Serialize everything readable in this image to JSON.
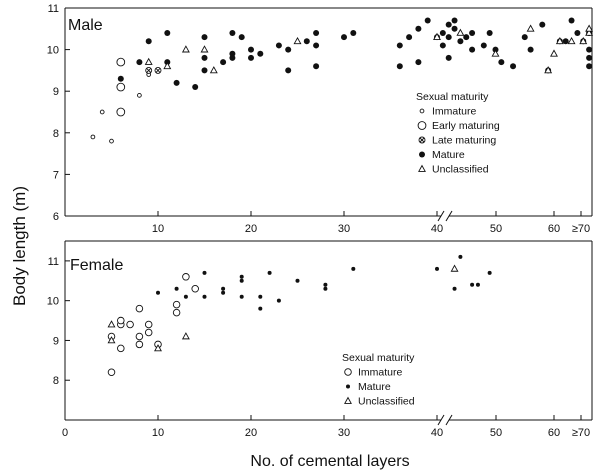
{
  "chart_data": {
    "type": "scatter",
    "xlabel": "No. of cemental layers",
    "ylabel": "Body length (m)",
    "panels": [
      {
        "title": "Male",
        "ylim": [
          6,
          11
        ],
        "yticks": [
          6,
          7,
          8,
          9,
          10,
          11
        ],
        "xticks": [
          "10",
          "20",
          "30",
          "40",
          "50",
          "60",
          "≥70"
        ],
        "axis_break": "after 40",
        "legend_title": "Sexual maturity",
        "legend": [
          {
            "label": "Immature",
            "marker": "small-open-circle"
          },
          {
            "label": "Early maturing",
            "marker": "large-open-circle"
          },
          {
            "label": "Late maturing",
            "marker": "circled-cross"
          },
          {
            "label": "Mature",
            "marker": "filled-circle"
          },
          {
            "label": "Unclassified",
            "marker": "open-triangle"
          }
        ],
        "series": [
          {
            "name": "Immature",
            "points": [
              [
                3,
                7.9
              ],
              [
                4,
                8.5
              ],
              [
                5,
                7.8
              ],
              [
                8,
                8.9
              ],
              [
                9,
                9.4
              ]
            ]
          },
          {
            "name": "Early maturing",
            "points": [
              [
                6,
                8.5
              ],
              [
                6,
                9.1
              ],
              [
                6,
                9.7
              ]
            ]
          },
          {
            "name": "Late maturing",
            "points": [
              [
                9,
                9.5
              ],
              [
                10,
                9.5
              ]
            ]
          },
          {
            "name": "Mature",
            "points": [
              [
                6,
                9.3
              ],
              [
                8,
                9.7
              ],
              [
                9,
                10.2
              ],
              [
                11,
                10.4
              ],
              [
                11,
                9.7
              ],
              [
                12,
                9.2
              ],
              [
                14,
                9.1
              ],
              [
                15,
                10.3
              ],
              [
                15,
                9.8
              ],
              [
                15,
                9.5
              ],
              [
                17,
                9.7
              ],
              [
                18,
                10.4
              ],
              [
                18,
                9.9
              ],
              [
                18,
                9.8
              ],
              [
                19,
                10.3
              ],
              [
                20,
                10.0
              ],
              [
                20,
                9.8
              ],
              [
                21,
                9.9
              ],
              [
                23,
                10.1
              ],
              [
                24,
                10.0
              ],
              [
                24,
                9.5
              ],
              [
                26,
                10.2
              ],
              [
                27,
                10.4
              ],
              [
                27,
                10.1
              ],
              [
                27,
                9.6
              ],
              [
                30,
                10.3
              ],
              [
                31,
                10.4
              ],
              [
                36,
                10.1
              ],
              [
                36,
                9.6
              ],
              [
                37,
                10.3
              ],
              [
                38,
                10.5
              ],
              [
                38,
                9.7
              ],
              [
                39,
                10.7
              ],
              [
                40,
                10.3
              ],
              [
                41,
                10.4
              ],
              [
                41,
                10.1
              ],
              [
                42,
                10.6
              ],
              [
                42,
                10.3
              ],
              [
                42,
                9.8
              ],
              [
                43,
                10.7
              ],
              [
                43,
                10.5
              ],
              [
                44,
                10.2
              ],
              [
                45,
                10.3
              ],
              [
                46,
                10.4
              ],
              [
                46,
                10.0
              ],
              [
                48,
                10.1
              ],
              [
                49,
                10.4
              ],
              [
                50,
                10.0
              ],
              [
                51,
                9.7
              ],
              [
                53,
                9.6
              ],
              [
                55,
                10.3
              ],
              [
                56,
                10.0
              ],
              [
                58,
                10.6
              ],
              [
                59,
                9.5
              ],
              [
                61,
                10.2
              ],
              [
                62,
                10.2
              ],
              [
                63,
                10.7
              ],
              [
                64,
                10.4
              ],
              [
                65,
                10.2
              ],
              [
                66,
                10.0
              ],
              [
                66,
                9.8
              ],
              [
                66,
                9.6
              ],
              [
                66,
                10.4
              ]
            ]
          },
          {
            "name": "Unclassified",
            "points": [
              [
                9,
                9.7
              ],
              [
                11,
                9.6
              ],
              [
                13,
                10.0
              ],
              [
                15,
                10.0
              ],
              [
                16,
                9.5
              ],
              [
                25,
                10.2
              ],
              [
                40,
                10.3
              ],
              [
                44,
                10.4
              ],
              [
                50,
                9.9
              ],
              [
                56,
                10.5
              ],
              [
                59,
                9.5
              ],
              [
                60,
                9.9
              ],
              [
                61,
                10.2
              ],
              [
                63,
                10.2
              ],
              [
                65,
                10.2
              ],
              [
                66,
                10.4
              ],
              [
                66,
                10.5
              ]
            ]
          }
        ]
      },
      {
        "title": "Female",
        "ylim": [
          7,
          11.5
        ],
        "yticks": [
          8,
          9,
          10,
          11
        ],
        "xticks": [
          "0",
          "10",
          "20",
          "30",
          "40",
          "50",
          "60",
          "≥70"
        ],
        "axis_break": "after 40",
        "legend_title": "Sexual maturity",
        "legend": [
          {
            "label": "Immature",
            "marker": "open-circle"
          },
          {
            "label": "Mature",
            "marker": "small-filled-circle"
          },
          {
            "label": "Unclassified",
            "marker": "open-triangle"
          }
        ],
        "series": [
          {
            "name": "Immature",
            "points": [
              [
                5,
                8.2
              ],
              [
                5,
                9.1
              ],
              [
                6,
                9.4
              ],
              [
                6,
                9.5
              ],
              [
                6,
                8.8
              ],
              [
                7,
                9.4
              ],
              [
                8,
                9.1
              ],
              [
                8,
                8.9
              ],
              [
                8,
                9.8
              ],
              [
                9,
                9.4
              ],
              [
                9,
                9.2
              ],
              [
                10,
                8.9
              ],
              [
                12,
                9.7
              ],
              [
                12,
                9.9
              ],
              [
                13,
                10.6
              ],
              [
                14,
                10.3
              ]
            ]
          },
          {
            "name": "Mature",
            "points": [
              [
                10,
                10.2
              ],
              [
                12,
                10.3
              ],
              [
                13,
                10.1
              ],
              [
                15,
                10.7
              ],
              [
                15,
                10.1
              ],
              [
                17,
                10.3
              ],
              [
                17,
                10.2
              ],
              [
                19,
                10.6
              ],
              [
                19,
                10.5
              ],
              [
                19,
                10.1
              ],
              [
                21,
                10.1
              ],
              [
                21,
                9.8
              ],
              [
                22,
                10.7
              ],
              [
                23,
                10.0
              ],
              [
                25,
                10.5
              ],
              [
                28,
                10.3
              ],
              [
                28,
                10.4
              ],
              [
                31,
                10.8
              ],
              [
                40,
                10.8
              ],
              [
                43,
                10.3
              ],
              [
                44,
                11.1
              ],
              [
                46,
                10.4
              ],
              [
                47,
                10.4
              ],
              [
                49,
                10.7
              ]
            ]
          },
          {
            "name": "Unclassified",
            "points": [
              [
                5,
                9.4
              ],
              [
                5,
                9.0
              ],
              [
                10,
                8.8
              ],
              [
                13,
                9.1
              ],
              [
                43,
                10.8
              ]
            ]
          }
        ]
      }
    ]
  }
}
